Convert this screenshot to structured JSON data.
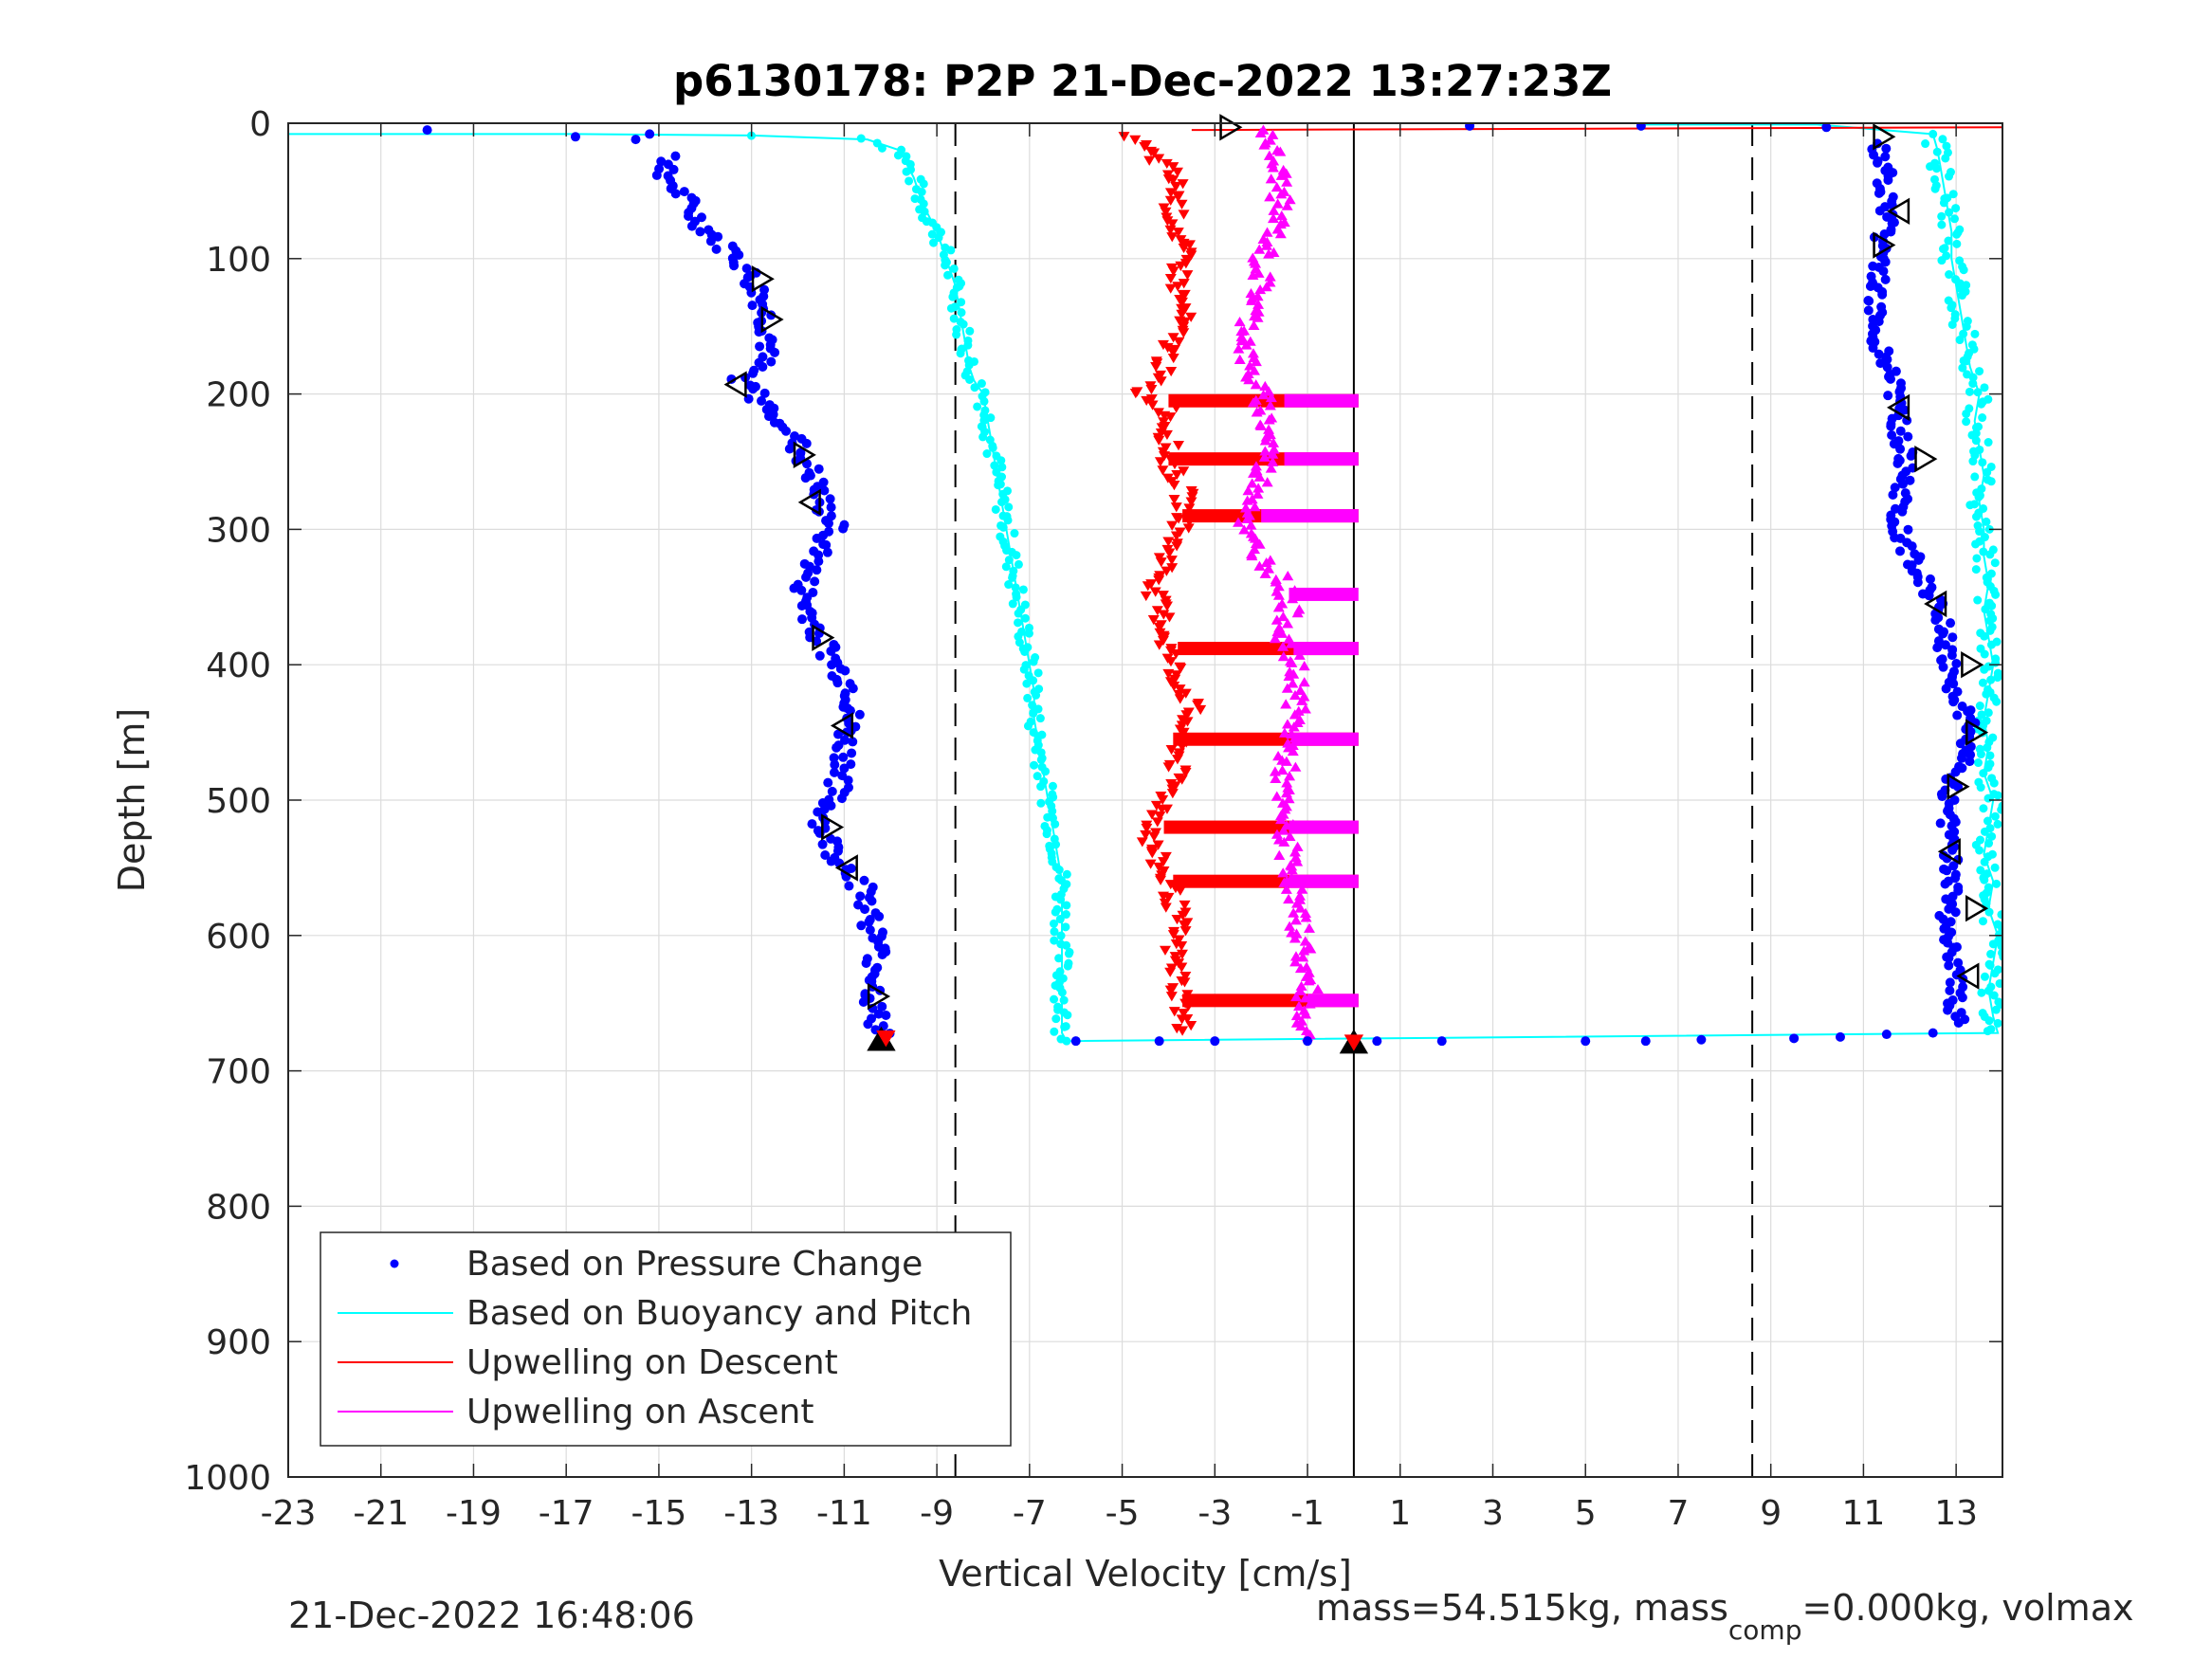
{
  "chart_data": {
    "type": "scatter",
    "title": "p6130178: P2P 21-Dec-2022 13:27:23Z",
    "xlabel": "Vertical Velocity [cm/s]",
    "ylabel": "Depth [m]",
    "xlim": [
      -23,
      14
    ],
    "ylim": [
      0,
      1000
    ],
    "y_reversed": true,
    "grid": true,
    "x_ticks": [
      -23,
      -21,
      -19,
      -17,
      -15,
      -13,
      -11,
      -9,
      -7,
      -5,
      -3,
      -1,
      1,
      3,
      5,
      7,
      9,
      11,
      13
    ],
    "y_ticks": [
      0,
      100,
      200,
      300,
      400,
      500,
      600,
      700,
      800,
      900,
      1000
    ],
    "legend_position": "bottom-left",
    "reference_lines": [
      {
        "x": 0,
        "style": "solid"
      },
      {
        "x": -8.6,
        "style": "dashed"
      },
      {
        "x": 8.6,
        "style": "dashed"
      }
    ],
    "series": [
      {
        "name": "Based on Pressure Change",
        "color": "#0000ff",
        "marker": "dot",
        "descent": [
          [
            -20,
            5
          ],
          [
            -16.8,
            10
          ],
          [
            -15.5,
            12
          ],
          [
            -15.2,
            8
          ],
          [
            -14.8,
            25
          ],
          [
            -14.8,
            40
          ],
          [
            -14.5,
            55
          ],
          [
            -14.2,
            70
          ],
          [
            -13.8,
            85
          ],
          [
            -13.3,
            100
          ],
          [
            -13.0,
            115
          ],
          [
            -12.8,
            130
          ],
          [
            -12.7,
            145
          ],
          [
            -12.6,
            160
          ],
          [
            -12.8,
            175
          ],
          [
            -13.2,
            190
          ],
          [
            -12.8,
            205
          ],
          [
            -12.3,
            220
          ],
          [
            -12.0,
            240
          ],
          [
            -11.7,
            260
          ],
          [
            -11.5,
            280
          ],
          [
            -11.2,
            300
          ],
          [
            -11.6,
            320
          ],
          [
            -11.9,
            340
          ],
          [
            -11.8,
            360
          ],
          [
            -11.5,
            380
          ],
          [
            -11.2,
            400
          ],
          [
            -10.8,
            420
          ],
          [
            -10.9,
            440
          ],
          [
            -11.0,
            460
          ],
          [
            -11.0,
            480
          ],
          [
            -11.3,
            500
          ],
          [
            -11.5,
            520
          ],
          [
            -11.2,
            540
          ],
          [
            -10.8,
            555
          ],
          [
            -10.5,
            570
          ],
          [
            -10.4,
            590
          ],
          [
            -10.3,
            610
          ],
          [
            -10.3,
            630
          ],
          [
            -10.4,
            650
          ],
          [
            -10.3,
            665
          ],
          [
            -10.1,
            675
          ],
          [
            -6.0,
            678
          ],
          [
            -4.2,
            678
          ],
          [
            -3.0,
            678
          ],
          [
            -1.0,
            678
          ]
        ],
        "ascent": [
          [
            0.5,
            678
          ],
          [
            1.9,
            678
          ],
          [
            5,
            678
          ],
          [
            6.3,
            678
          ],
          [
            7.5,
            677
          ],
          [
            9.5,
            676
          ],
          [
            10.5,
            675
          ],
          [
            11.5,
            673
          ],
          [
            12.5,
            672
          ],
          [
            13.0,
            665
          ],
          [
            13.0,
            650
          ],
          [
            13.0,
            630
          ],
          [
            12.9,
            610
          ],
          [
            12.8,
            590
          ],
          [
            12.9,
            570
          ],
          [
            12.9,
            550
          ],
          [
            12.8,
            530
          ],
          [
            12.8,
            510
          ],
          [
            12.9,
            490
          ],
          [
            13.2,
            470
          ],
          [
            13.3,
            450
          ],
          [
            13.1,
            430
          ],
          [
            12.9,
            410
          ],
          [
            12.8,
            390
          ],
          [
            12.7,
            370
          ],
          [
            12.5,
            350
          ],
          [
            12.2,
            330
          ],
          [
            11.9,
            310
          ],
          [
            11.7,
            290
          ],
          [
            11.8,
            270
          ],
          [
            11.9,
            250
          ],
          [
            11.8,
            230
          ],
          [
            11.7,
            210
          ],
          [
            11.6,
            190
          ],
          [
            11.4,
            170
          ],
          [
            11.3,
            150
          ],
          [
            11.3,
            130
          ],
          [
            11.3,
            110
          ],
          [
            11.4,
            90
          ],
          [
            11.5,
            70
          ],
          [
            11.5,
            50
          ],
          [
            11.4,
            30
          ],
          [
            11.3,
            15
          ],
          [
            10.2,
            3
          ],
          [
            6.2,
            2
          ],
          [
            2.5,
            2
          ]
        ]
      },
      {
        "name": "Based on Buoyancy and Pitch",
        "color": "#00ffff",
        "marker": "line",
        "descent": [
          [
            -23,
            8
          ],
          [
            -16.8,
            8
          ],
          [
            -13.0,
            9
          ],
          [
            -10.5,
            12
          ],
          [
            -9.8,
            20
          ],
          [
            -9.5,
            40
          ],
          [
            -9.3,
            60
          ],
          [
            -9.0,
            80
          ],
          [
            -8.8,
            100
          ],
          [
            -8.6,
            120
          ],
          [
            -8.5,
            140
          ],
          [
            -8.4,
            160
          ],
          [
            -8.3,
            180
          ],
          [
            -8.2,
            190
          ],
          [
            -8.0,
            200
          ],
          [
            -7.9,
            220
          ],
          [
            -7.8,
            240
          ],
          [
            -7.7,
            260
          ],
          [
            -7.6,
            280
          ],
          [
            -7.5,
            300
          ],
          [
            -7.4,
            320
          ],
          [
            -7.3,
            340
          ],
          [
            -7.2,
            360
          ],
          [
            -7.1,
            380
          ],
          [
            -7.0,
            400
          ],
          [
            -6.9,
            420
          ],
          [
            -6.9,
            440
          ],
          [
            -6.8,
            460
          ],
          [
            -6.7,
            480
          ],
          [
            -6.6,
            500
          ],
          [
            -6.5,
            520
          ],
          [
            -6.4,
            540
          ],
          [
            -6.3,
            560
          ],
          [
            -6.3,
            580
          ],
          [
            -6.3,
            600
          ],
          [
            -6.3,
            620
          ],
          [
            -6.3,
            640
          ],
          [
            -6.3,
            660
          ],
          [
            -6.3,
            672
          ],
          [
            -6.2,
            678
          ]
        ],
        "ascent": [
          [
            -6.2,
            678
          ],
          [
            13.9,
            672
          ],
          [
            13.8,
            660
          ],
          [
            13.7,
            640
          ],
          [
            13.8,
            620
          ],
          [
            13.9,
            600
          ],
          [
            13.7,
            580
          ],
          [
            13.8,
            560
          ],
          [
            13.6,
            540
          ],
          [
            13.7,
            520
          ],
          [
            13.8,
            500
          ],
          [
            13.6,
            480
          ],
          [
            13.7,
            460
          ],
          [
            13.6,
            440
          ],
          [
            13.7,
            420
          ],
          [
            13.8,
            400
          ],
          [
            13.7,
            380
          ],
          [
            13.6,
            360
          ],
          [
            13.7,
            340
          ],
          [
            13.6,
            320
          ],
          [
            13.6,
            300
          ],
          [
            13.5,
            280
          ],
          [
            13.6,
            260
          ],
          [
            13.5,
            240
          ],
          [
            13.4,
            220
          ],
          [
            13.5,
            200
          ],
          [
            13.3,
            180
          ],
          [
            13.2,
            160
          ],
          [
            13.1,
            140
          ],
          [
            13.0,
            120
          ],
          [
            12.9,
            100
          ],
          [
            12.9,
            80
          ],
          [
            12.8,
            60
          ],
          [
            12.7,
            40
          ],
          [
            12.6,
            20
          ],
          [
            12.5,
            8
          ],
          [
            10.0,
            1
          ],
          [
            6.3,
            1
          ]
        ]
      },
      {
        "name": "Upwelling on Descent",
        "color": "#ff0000",
        "marker": "triangle-down",
        "points": [
          [
            -4.8,
            10
          ],
          [
            -4.5,
            20
          ],
          [
            -4.0,
            35
          ],
          [
            -3.8,
            50
          ],
          [
            -3.9,
            65
          ],
          [
            -3.8,
            80
          ],
          [
            -3.7,
            100
          ],
          [
            -3.8,
            120
          ],
          [
            -3.7,
            140
          ],
          [
            -3.9,
            160
          ],
          [
            -4.1,
            180
          ],
          [
            -4.6,
            200
          ],
          [
            -4.0,
            210
          ],
          [
            -4.0,
            230
          ],
          [
            -4.0,
            250
          ],
          [
            -3.7,
            270
          ],
          [
            -3.6,
            290
          ],
          [
            -3.9,
            310
          ],
          [
            -4.1,
            330
          ],
          [
            -4.3,
            350
          ],
          [
            -4.1,
            370
          ],
          [
            -4.0,
            390
          ],
          [
            -3.8,
            410
          ],
          [
            -3.5,
            430
          ],
          [
            -3.7,
            450
          ],
          [
            -3.8,
            470
          ],
          [
            -3.9,
            490
          ],
          [
            -4.2,
            510
          ],
          [
            -4.4,
            530
          ],
          [
            -4.2,
            550
          ],
          [
            -3.9,
            570
          ],
          [
            -3.8,
            590
          ],
          [
            -3.9,
            610
          ],
          [
            -3.8,
            630
          ],
          [
            -3.7,
            650
          ],
          [
            -3.7,
            670
          ]
        ],
        "bands": [
          [
            -4.0,
            205
          ],
          [
            -4.0,
            248
          ],
          [
            -3.7,
            290
          ],
          [
            -3.8,
            388
          ],
          [
            -3.9,
            455
          ],
          [
            -4.1,
            520
          ],
          [
            -3.9,
            560
          ],
          [
            -3.7,
            648
          ]
        ],
        "surface_line": [
          [
            -3.5,
            5
          ],
          [
            14,
            3
          ]
        ]
      },
      {
        "name": "Upwelling on Ascent",
        "color": "#ff00ff",
        "marker": "triangle-up",
        "points": [
          [
            -1.8,
            5
          ],
          [
            -1.8,
            20
          ],
          [
            -1.6,
            40
          ],
          [
            -1.6,
            60
          ],
          [
            -1.7,
            80
          ],
          [
            -2.0,
            100
          ],
          [
            -2.0,
            120
          ],
          [
            -2.2,
            140
          ],
          [
            -2.3,
            160
          ],
          [
            -2.3,
            180
          ],
          [
            -2.0,
            200
          ],
          [
            -1.9,
            220
          ],
          [
            -1.8,
            240
          ],
          [
            -2.0,
            260
          ],
          [
            -2.1,
            280
          ],
          [
            -2.4,
            300
          ],
          [
            -2.0,
            320
          ],
          [
            -1.5,
            340
          ],
          [
            -1.4,
            360
          ],
          [
            -1.5,
            380
          ],
          [
            -1.3,
            400
          ],
          [
            -1.2,
            420
          ],
          [
            -1.3,
            440
          ],
          [
            -1.4,
            460
          ],
          [
            -1.5,
            480
          ],
          [
            -1.6,
            500
          ],
          [
            -1.5,
            520
          ],
          [
            -1.4,
            540
          ],
          [
            -1.3,
            560
          ],
          [
            -1.3,
            580
          ],
          [
            -1.1,
            600
          ],
          [
            -1.1,
            620
          ],
          [
            -1.0,
            640
          ],
          [
            -1.1,
            660
          ],
          [
            -1.0,
            675
          ]
        ],
        "bands": [
          [
            -1.5,
            205
          ],
          [
            -1.5,
            248
          ],
          [
            -2.0,
            290
          ],
          [
            -1.4,
            348
          ],
          [
            -1.3,
            388
          ],
          [
            -1.3,
            455
          ],
          [
            -1.4,
            520
          ],
          [
            -1.4,
            560
          ],
          [
            -1.0,
            648
          ]
        ]
      }
    ],
    "markers": {
      "right_triangles": [
        [
          -2.7,
          3
        ],
        [
          -12.8,
          115
        ],
        [
          -12.6,
          145
        ],
        [
          -11.9,
          245
        ],
        [
          -11.5,
          380
        ],
        [
          -11.3,
          520
        ],
        [
          -10.3,
          645
        ],
        [
          11.4,
          10
        ],
        [
          11.4,
          90
        ],
        [
          12.3,
          248
        ],
        [
          13.3,
          400
        ],
        [
          13.4,
          450
        ],
        [
          13.0,
          490
        ],
        [
          13.4,
          580
        ]
      ],
      "left_triangles": [
        [
          -13.3,
          193
        ],
        [
          -11.7,
          280
        ],
        [
          -11.0,
          445
        ],
        [
          -10.9,
          550
        ],
        [
          11.8,
          65
        ],
        [
          11.8,
          210
        ],
        [
          12.6,
          355
        ],
        [
          12.9,
          538
        ],
        [
          13.3,
          630
        ]
      ],
      "up_triangles": [
        [
          -10.2,
          678
        ],
        [
          0,
          680
        ]
      ],
      "red_markers": [
        [
          -10.1,
          675
        ],
        [
          0,
          678
        ]
      ]
    }
  },
  "legend": [
    {
      "label": "Based on Pressure Change",
      "symbol": "dot",
      "color": "#0000ff"
    },
    {
      "label": "Based on Buoyancy and Pitch",
      "symbol": "line",
      "color": "#00ffff"
    },
    {
      "label": "Upwelling on Descent",
      "symbol": "line",
      "color": "#ff0000"
    },
    {
      "label": "Upwelling on Ascent",
      "symbol": "line",
      "color": "#ff00ff"
    }
  ],
  "footer": {
    "timestamp": "21-Dec-2022 16:48:06",
    "mass_text": "mass=54.515kg, mass",
    "mass_subscript": "comp",
    "mass_tail": "=0.000kg, volmax"
  }
}
